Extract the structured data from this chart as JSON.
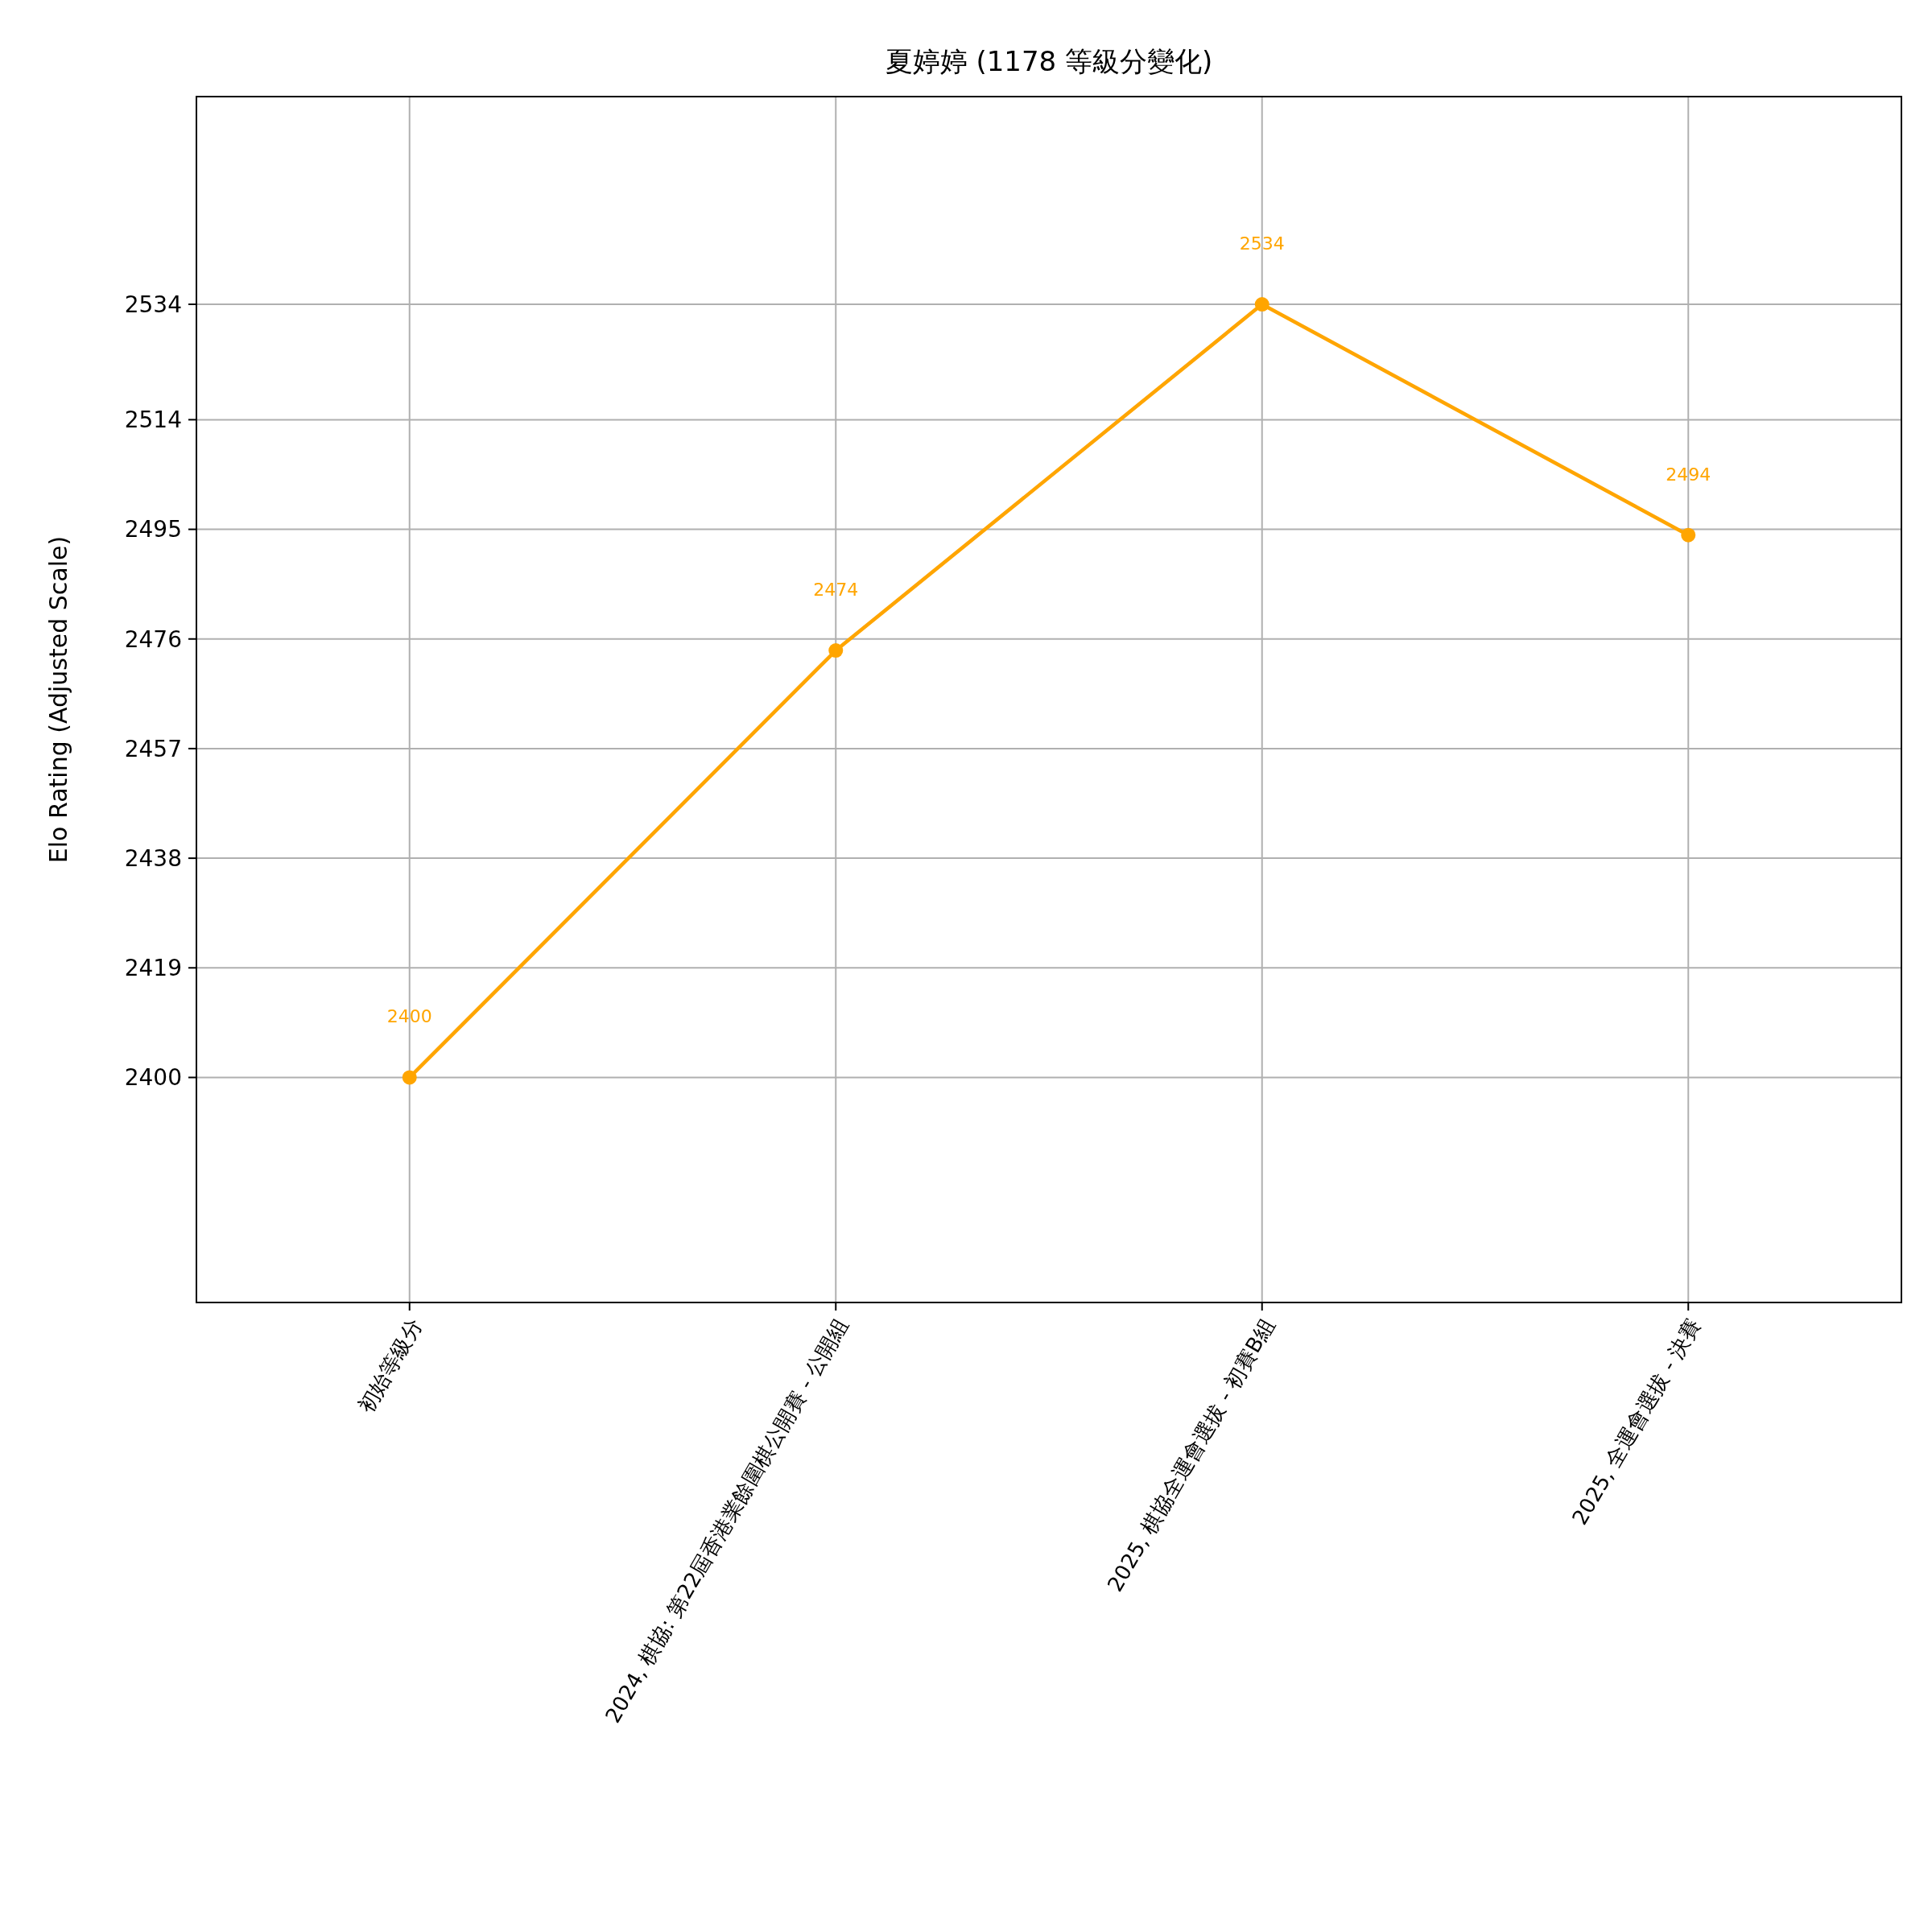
{
  "chart_data": {
    "type": "line",
    "title": "夏婷婷 (1178 等級分變化)",
    "ylabel": "Elo Rating (Adjusted Scale)",
    "categories": [
      "初始等級分",
      "2024, 棋協: 第22屆香港業餘圍棋公開賽 - 公開組",
      "2025, 棋協全運會選拔 - 初賽B組",
      "2025, 全運會選拔 - 決賽"
    ],
    "series": [
      {
        "color": "#ffa500",
        "values": [
          2400,
          2474,
          2534,
          2494
        ]
      }
    ],
    "ylim": [
      2361,
      2570
    ],
    "yticks": [
      2400,
      2419,
      2438,
      2457,
      2476,
      2495,
      2514,
      2534
    ],
    "grid": true,
    "marker": "circle",
    "line_style": "solid",
    "data_labels": true
  }
}
